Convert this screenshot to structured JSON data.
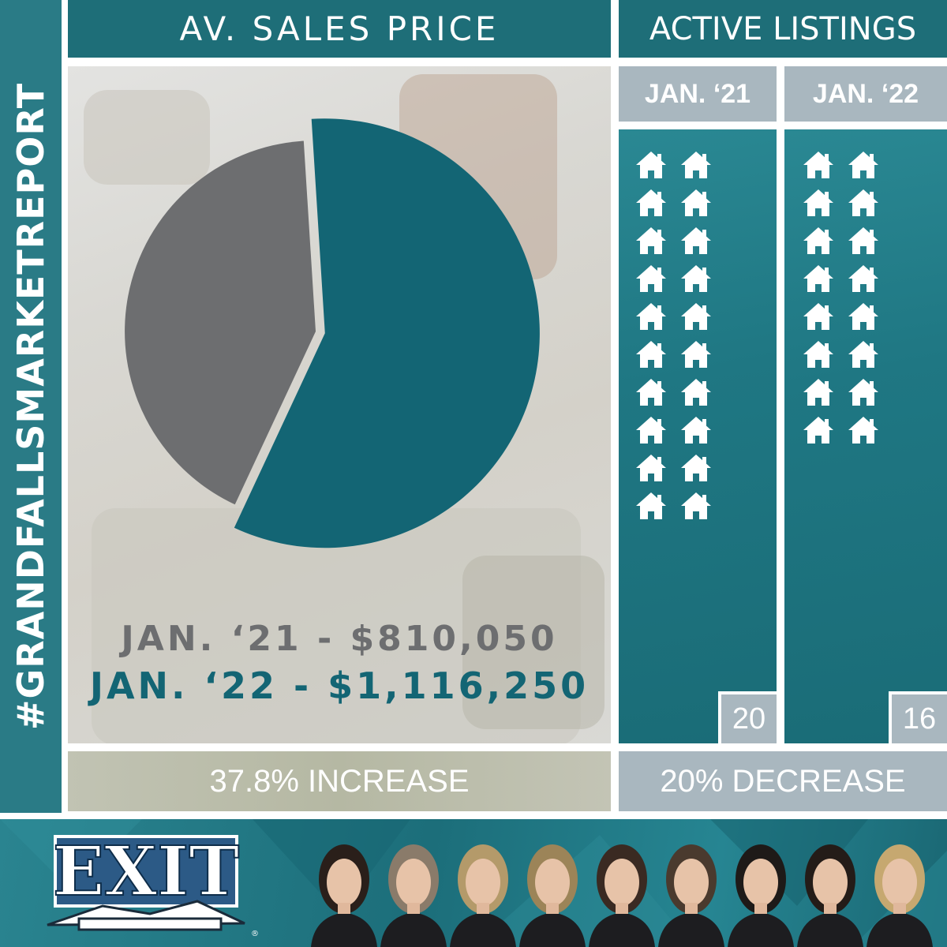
{
  "side_label": "#GRANDFALLSMARKETREPORT",
  "left_panel": {
    "title": "AV. SALES PRICE",
    "price_2021": "JAN. ‘21 - $810,050",
    "price_2022": "JAN. ‘22 - $1,116,250",
    "change": "37.8% INCREASE"
  },
  "right_panel": {
    "title": "ACTIVE LISTINGS",
    "col_2021": {
      "label": "JAN. ‘21",
      "count": "20"
    },
    "col_2022": {
      "label": "JAN. ‘22",
      "count": "16"
    },
    "change": "20% DECREASE"
  },
  "colors": {
    "teal": "#136574",
    "grey": "#6d6e70",
    "listing_tab": "#a9b7bf",
    "header": "#1e6e78"
  },
  "chart_data": [
    {
      "type": "pie",
      "title": "AV. SALES PRICE",
      "series": [
        {
          "period": "JAN. ‘21",
          "value": 810050,
          "color": "#6d6e70"
        },
        {
          "period": "JAN. ‘22",
          "value": 1116250,
          "color": "#136574",
          "exploded": true
        }
      ]
    },
    {
      "type": "pictograph",
      "title": "ACTIVE LISTINGS",
      "categories": [
        "JAN. ‘21",
        "JAN. ‘22"
      ],
      "values": [
        20,
        16
      ],
      "icon": "house-icon"
    }
  ],
  "footer": {
    "logo_text": "EXIT",
    "icons": [
      "exit-logo",
      "agent-photo"
    ]
  }
}
